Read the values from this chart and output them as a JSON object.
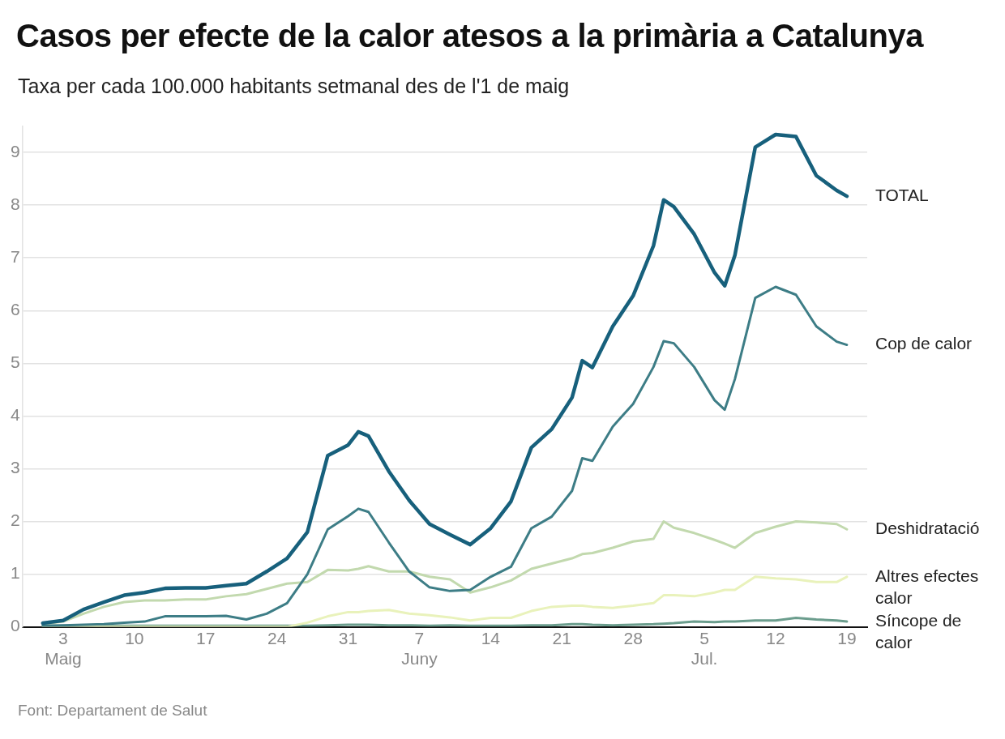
{
  "chart_data": {
    "type": "line",
    "title": "Casos per efecte de la calor atesos a la primària a Catalunya",
    "subtitle": "Taxa per cada 100.000 habitants setmanal des de l'1 de maig",
    "x": [
      "--05-01",
      "--05-03",
      "--05-05",
      "--05-07",
      "--05-09",
      "--05-11",
      "--05-13",
      "--05-15",
      "--05-17",
      "--05-19",
      "--05-21",
      "--05-23",
      "--05-25",
      "--05-27",
      "--05-29",
      "--05-31",
      "--06-01",
      "--06-02",
      "--06-04",
      "--06-06",
      "--06-08",
      "--06-10",
      "--06-12",
      "--06-14",
      "--06-16",
      "--06-18",
      "--06-20",
      "--06-22",
      "--06-23",
      "--06-24",
      "--06-26",
      "--06-28",
      "--06-30",
      "--07-01",
      "--07-02",
      "--07-04",
      "--07-06",
      "--07-07",
      "--07-08",
      "--07-10",
      "--07-12",
      "--07-14",
      "--07-16",
      "--07-18",
      "--07-19"
    ],
    "series": [
      {
        "name": "TOTAL",
        "color": "#17607c",
        "values": [
          0.07,
          0.12,
          0.33,
          0.47,
          0.6,
          0.65,
          0.73,
          0.74,
          0.74,
          0.78,
          0.82,
          1.05,
          1.3,
          1.8,
          3.25,
          3.45,
          3.7,
          3.62,
          2.95,
          2.4,
          1.95,
          1.75,
          1.56,
          1.87,
          2.38,
          3.4,
          3.75,
          4.35,
          5.05,
          4.92,
          5.7,
          6.28,
          7.23,
          8.1,
          7.97,
          7.45,
          6.72,
          6.47,
          7.05,
          9.1,
          9.34,
          9.3,
          8.56,
          8.28,
          8.17
        ]
      },
      {
        "name": "Cop de calor",
        "color": "#3d7d86",
        "values": [
          0.02,
          0.03,
          0.04,
          0.05,
          0.08,
          0.1,
          0.2,
          0.2,
          0.2,
          0.21,
          0.14,
          0.25,
          0.45,
          1.0,
          1.85,
          2.1,
          2.24,
          2.18,
          1.6,
          1.05,
          0.75,
          0.68,
          0.7,
          0.95,
          1.14,
          1.87,
          2.09,
          2.58,
          3.2,
          3.15,
          3.8,
          4.23,
          4.93,
          5.42,
          5.38,
          4.93,
          4.3,
          4.12,
          4.7,
          6.24,
          6.45,
          6.3,
          5.7,
          5.41,
          5.35
        ]
      },
      {
        "name": "Deshidratació",
        "color": "#c2d9ae",
        "values": [
          0.05,
          0.1,
          0.25,
          0.38,
          0.47,
          0.5,
          0.5,
          0.52,
          0.52,
          0.58,
          0.62,
          0.72,
          0.82,
          0.85,
          1.08,
          1.07,
          1.1,
          1.15,
          1.05,
          1.05,
          0.95,
          0.9,
          0.65,
          0.75,
          0.88,
          1.1,
          1.2,
          1.3,
          1.38,
          1.4,
          1.5,
          1.62,
          1.67,
          2.0,
          1.88,
          1.78,
          1.65,
          1.58,
          1.5,
          1.78,
          1.9,
          2.0,
          1.98,
          1.95,
          1.85
        ]
      },
      {
        "name": "Altres efectes calor",
        "color": "#e9f2bb",
        "values": [
          0,
          0,
          0,
          0,
          0,
          0,
          0,
          0,
          0,
          0,
          0,
          0,
          0,
          0.08,
          0.2,
          0.28,
          0.28,
          0.3,
          0.32,
          0.25,
          0.22,
          0.18,
          0.12,
          0.17,
          0.17,
          0.3,
          0.38,
          0.4,
          0.4,
          0.38,
          0.36,
          0.4,
          0.45,
          0.6,
          0.6,
          0.58,
          0.65,
          0.7,
          0.7,
          0.95,
          0.92,
          0.9,
          0.85,
          0.85,
          0.95
        ]
      },
      {
        "name": "Síncope de calor",
        "color": "#6b9d8d",
        "values": [
          0.02,
          0.02,
          0.02,
          0.02,
          0.02,
          0.02,
          0.02,
          0.02,
          0.02,
          0.02,
          0.02,
          0.02,
          0.02,
          0.02,
          0.03,
          0.04,
          0.04,
          0.04,
          0.03,
          0.03,
          0.02,
          0.03,
          0.02,
          0.02,
          0.02,
          0.03,
          0.03,
          0.05,
          0.05,
          0.04,
          0.03,
          0.04,
          0.05,
          0.06,
          0.07,
          0.1,
          0.09,
          0.1,
          0.1,
          0.12,
          0.12,
          0.17,
          0.14,
          0.12,
          0.1
        ]
      }
    ],
    "xlim": [
      "--04-29",
      "--07-21"
    ],
    "xticks": [
      {
        "value": "--05-03",
        "label": "3\nMaig"
      },
      {
        "value": "--05-10",
        "label": "10"
      },
      {
        "value": "--05-17",
        "label": "17"
      },
      {
        "value": "--05-24",
        "label": "24"
      },
      {
        "value": "--05-31",
        "label": "31"
      },
      {
        "value": "--06-07",
        "label": "7\nJuny"
      },
      {
        "value": "--06-14",
        "label": "14"
      },
      {
        "value": "--06-21",
        "label": "21"
      },
      {
        "value": "--06-28",
        "label": "28"
      },
      {
        "value": "--07-05",
        "label": "5\nJul."
      },
      {
        "value": "--07-12",
        "label": "12"
      },
      {
        "value": "--07-19",
        "label": "19"
      }
    ],
    "ylim": [
      0,
      9.5
    ],
    "yticks": [
      0,
      1,
      2,
      3,
      4,
      5,
      6,
      7,
      8,
      9
    ],
    "grid": "y",
    "legend": false,
    "marker": "none",
    "line_style": "solid",
    "annotations": [
      "Font: Departament de Salut"
    ]
  }
}
